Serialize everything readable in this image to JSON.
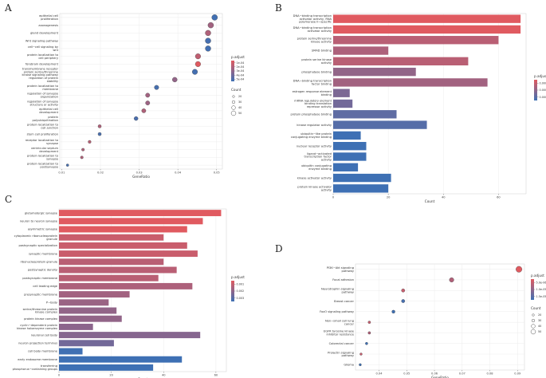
{
  "figure": {
    "panel_labels": [
      "A",
      "B",
      "C",
      "D"
    ]
  },
  "chart_data": [
    {
      "panel": "A",
      "type": "scatter",
      "xlabel": "GeneRatio",
      "ylabel": "",
      "xlim": [
        0.0095,
        0.0515
      ],
      "xticks": [
        0.01,
        0.02,
        0.03,
        0.04,
        0.05
      ],
      "xtick_labels": [
        "0.01",
        "0.02",
        "0.03",
        "0.04",
        "0.05"
      ],
      "legend_color_title": "p.adjust",
      "legend_color_labels": [
        "1e-04",
        "2e-04",
        "3e-04",
        "4e-04",
        "5e-04"
      ],
      "legend_size_title": "Count",
      "legend_size_labels": [
        "20",
        "30",
        "40",
        "50"
      ],
      "categories": [
        "epithelial cell proliferation",
        "axonogenesis",
        "gland development",
        "Wnt signaling pathway",
        "cell−cell signaling by wnt",
        "protein localization to cell periphery",
        "forebrain development",
        "transmembrane receptor protein serine/threonine kinase signaling pathway",
        "regulation of protein stability",
        "protein localization to membrane",
        "regulation of synapse organization",
        "regulation of synapse structure or activity",
        "epithelial cell development",
        "protein polyubiquitination",
        "protein localization to cell junction",
        "stem cell proliferation",
        "receptor localization to synapse",
        "ventricular septum development",
        "protein localization to synapse",
        "protein localization to postsynapse"
      ],
      "gene_ratio": [
        0.0495,
        0.0485,
        0.0478,
        0.0478,
        0.0478,
        0.0452,
        0.0452,
        0.0444,
        0.0392,
        0.0345,
        0.0322,
        0.0322,
        0.0312,
        0.0292,
        0.0198,
        0.0198,
        0.0172,
        0.0155,
        0.0152,
        0.0115
      ],
      "p_adjust": [
        0.00048,
        0.00012,
        0.0001,
        0.00045,
        0.00047,
        8e-05,
        5e-05,
        0.00046,
        0.00015,
        0.00044,
        0.00012,
        0.00013,
        0.0001,
        0.00042,
        0.0001,
        0.00043,
        9e-05,
        0.0001,
        0.0001,
        0.00044
      ],
      "count": [
        55,
        54,
        53,
        53,
        53,
        50,
        50,
        49,
        43,
        38,
        36,
        36,
        35,
        32,
        22,
        22,
        19,
        17,
        17,
        13
      ]
    },
    {
      "panel": "B",
      "type": "bar",
      "xlabel": "Count",
      "ylabel": "",
      "xlim": [
        0,
        70
      ],
      "xticks": [
        0,
        20,
        40,
        60
      ],
      "xtick_labels": [
        "0",
        "20",
        "40",
        "60"
      ],
      "legend_color_title": "p.adjust",
      "legend_color_labels": [
        "0.0001",
        "0.0002",
        "0.0003"
      ],
      "categories": [
        "DNA−binding transcription activator activity, RNA polymerase II−specific",
        "DNA−binding transcription activator activity",
        "protein serine/threonine kinase activity",
        "SMAD binding",
        "protein serine kinase activity",
        "phosphatase binding",
        "DNA−binding transcription factor binding",
        "estrogen response element binding",
        "mRNA regulatory element binding translation repressor activity",
        "protein phosphatase binding",
        "kinase regulator activity",
        "ubiquitin−like protein conjugating enzyme binding",
        "nuclear receptor activity",
        "ligand−activated transcription factor activity",
        "ubiquitin conjugating enzyme binding",
        "kinase activator activity",
        "protein kinase activator activity"
      ],
      "values": [
        68,
        68,
        60,
        20,
        49,
        30,
        56,
        6,
        7,
        23,
        34,
        10,
        12,
        12,
        9,
        21,
        20
      ],
      "p_adjust": [
        2e-05,
        2e-05,
        4e-05,
        5e-05,
        4e-05,
        8e-05,
        6e-05,
        0.00012,
        0.00014,
        0.0002,
        0.00024,
        0.00036,
        0.00036,
        0.00036,
        0.00036,
        0.00036,
        0.00036
      ]
    },
    {
      "panel": "C",
      "type": "bar",
      "xlabel": "Count",
      "ylabel": "",
      "xlim": [
        0,
        64
      ],
      "xticks": [
        0,
        20,
        40,
        60
      ],
      "xtick_labels": [
        "0",
        "20",
        "40",
        "60"
      ],
      "legend_color_title": "p.adjust",
      "legend_color_labels": [
        "0.001",
        "0.002",
        "0.003"
      ],
      "categories": [
        "glutamatergic synapse",
        "neuron to neuron synapse",
        "asymmetric synapse",
        "cytoplasmic ribonucleoprotein granule",
        "postsynaptic specialization",
        "synaptic membrane",
        "ribonucleoprotein granule",
        "postsynaptic density",
        "postsynaptic membrane",
        "cell leading edge",
        "presynaptic membrane",
        "P−body",
        "serine/threonine protein kinase complex",
        "protein kinase complex",
        "cyclin−dependent protein kinase holoenzyme complex",
        "neuronal cell body",
        "neuron projection terminus",
        "cell body membrane",
        "early endosome membrane",
        "transferring phosphorus−containing groups"
      ],
      "values": [
        62,
        55,
        49,
        40,
        49,
        53,
        40,
        45,
        38,
        51,
        27,
        19,
        22,
        24,
        13,
        54,
        21,
        9,
        47,
        36
      ],
      "p_adjust": [
        0.0002,
        0.0002,
        0.0002,
        0.0003,
        0.0003,
        0.0003,
        0.0004,
        0.0004,
        0.0004,
        0.0005,
        0.0006,
        0.0007,
        0.0008,
        0.0008,
        0.0009,
        0.001,
        0.0014,
        0.0035,
        0.0036,
        0.0036
      ]
    },
    {
      "panel": "D",
      "type": "scatter",
      "xlabel": "GeneRatio",
      "ylabel": "",
      "xlim": [
        0.0315,
        0.0925
      ],
      "xticks": [
        0.04,
        0.05,
        0.06,
        0.07,
        0.08,
        0.09
      ],
      "xtick_labels": [
        "0.04",
        "0.05",
        "0.06",
        "0.07",
        "0.08",
        "0.09"
      ],
      "legend_color_title": "p.adjust",
      "legend_color_labels": [
        "5.0e-06",
        "1.0e-05",
        "1.5e-05"
      ],
      "legend_size_title": "Count",
      "legend_size_labels": [
        "20",
        "30",
        "40",
        "50"
      ],
      "categories": [
        "PI3K−Akt signaling pathway",
        "Focal adhesion",
        "Neurotrophin signaling pathway",
        "Breast cancer",
        "FoxO signaling pathway",
        "Non−small cell lung cancer",
        "EGFR tyrosine kinase inhibitor resistance",
        "Colorectal cancer",
        "Prolactin signaling pathway",
        "Glioma"
      ],
      "gene_ratio": [
        0.0905,
        0.0662,
        0.0487,
        0.0487,
        0.0452,
        0.0365,
        0.0365,
        0.0355,
        0.0335,
        0.0332
      ],
      "p_adjust": [
        4e-06,
        6e-06,
        5e-06,
        1.5e-05,
        1.6e-05,
        5e-06,
        6e-06,
        1.6e-05,
        5e-06,
        1.6e-05
      ],
      "count": [
        52,
        38,
        28,
        28,
        26,
        21,
        21,
        20,
        19,
        19
      ]
    }
  ]
}
